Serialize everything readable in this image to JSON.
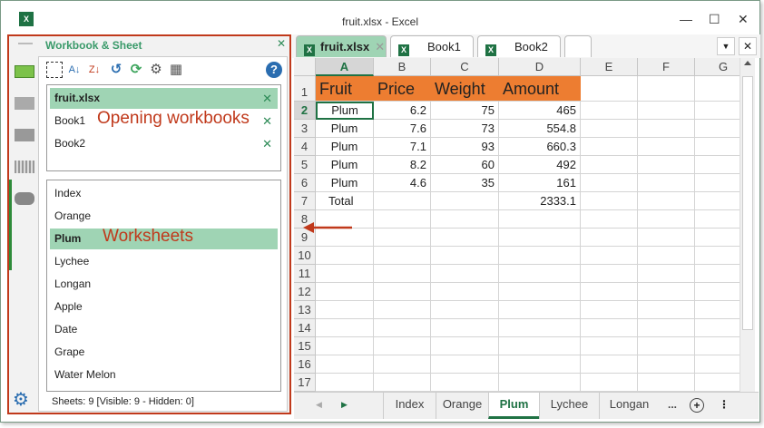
{
  "window": {
    "title": "fruit.xlsx - Excel",
    "controls": [
      "—",
      "☐",
      "✕"
    ]
  },
  "pane": {
    "title": "Workbook & Sheet",
    "close": "✕",
    "toolbar_icons": [
      "resize-icon",
      "sort-az-icon",
      "sort-za-icon",
      "refresh-icon",
      "sync-icon",
      "sheet-settings-icon",
      "sheet-tools-icon",
      "help-icon"
    ],
    "workbooks": [
      {
        "name": "fruit.xlsx",
        "selected": true
      },
      {
        "name": "Book1"
      },
      {
        "name": "Book2"
      }
    ],
    "workbooks_annotation": "Opening workbooks",
    "sheets": [
      {
        "name": "Index"
      },
      {
        "name": "Orange"
      },
      {
        "name": "Plum",
        "selected": true
      },
      {
        "name": "Lychee"
      },
      {
        "name": "Longan"
      },
      {
        "name": "Apple"
      },
      {
        "name": "Date"
      },
      {
        "name": "Grape"
      },
      {
        "name": "Water Melon"
      }
    ],
    "sheets_annotation": "Worksheets",
    "status": "Sheets: 9  [Visible: 9 - Hidden: 0]"
  },
  "file_tabs": [
    {
      "name": "fruit.xlsx",
      "active": true
    },
    {
      "name": "Book1"
    },
    {
      "name": "Book2"
    }
  ],
  "file_tab_close": "✕",
  "grid": {
    "columns": [
      "A",
      "B",
      "C",
      "D",
      "E",
      "F",
      "G"
    ],
    "rows": [
      [
        "Fruit",
        "Price",
        "Weight",
        "Amount"
      ],
      [
        "Plum",
        "6.2",
        "75",
        "465"
      ],
      [
        "Plum",
        "7.6",
        "73",
        "554.8"
      ],
      [
        "Plum",
        "7.1",
        "93",
        "660.3"
      ],
      [
        "Plum",
        "8.2",
        "60",
        "492"
      ],
      [
        "Plum",
        "4.6",
        "35",
        "161"
      ],
      [
        "Total",
        "",
        "",
        "2333.1"
      ]
    ],
    "row_count": 17,
    "selected_cell": "A2",
    "header_fill": "#ed7d31"
  },
  "sheet_tabs": [
    "Index",
    "Orange",
    "Plum",
    "Lychee",
    "Longan"
  ],
  "active_sheet": "Plum",
  "sheet_more": "...",
  "colors": {
    "accent": "#1f7244",
    "annotation": "#c0391b",
    "selection": "#9fd4b4"
  }
}
